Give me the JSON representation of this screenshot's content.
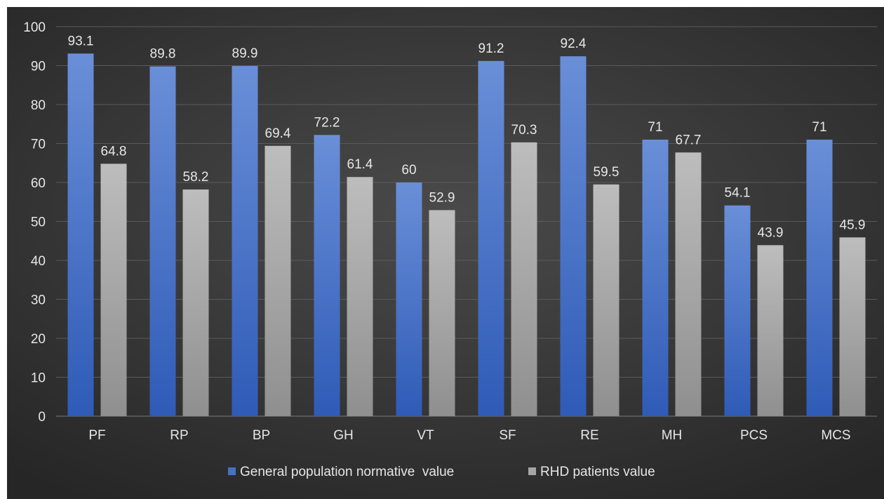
{
  "chart_data": {
    "type": "bar",
    "categories": [
      "PF",
      "RP",
      "BP",
      "GH",
      "VT",
      "SF",
      "RE",
      "MH",
      "PCS",
      "MCS"
    ],
    "series": [
      {
        "name": "General population normative  value",
        "color": "#4472C4",
        "values": [
          93.1,
          89.8,
          89.9,
          72.2,
          60,
          91.2,
          92.4,
          71,
          54.1,
          71
        ]
      },
      {
        "name": "RHD patients value",
        "color": "#A5A5A5",
        "values": [
          64.8,
          58.2,
          69.4,
          61.4,
          52.9,
          70.3,
          59.5,
          67.7,
          43.9,
          45.9
        ]
      }
    ],
    "ylim": [
      0,
      100
    ],
    "yticks": [
      0,
      10,
      20,
      30,
      40,
      50,
      60,
      70,
      80,
      90,
      100
    ],
    "grid": true,
    "legend": "bottom",
    "background": "#3a3a3a"
  }
}
